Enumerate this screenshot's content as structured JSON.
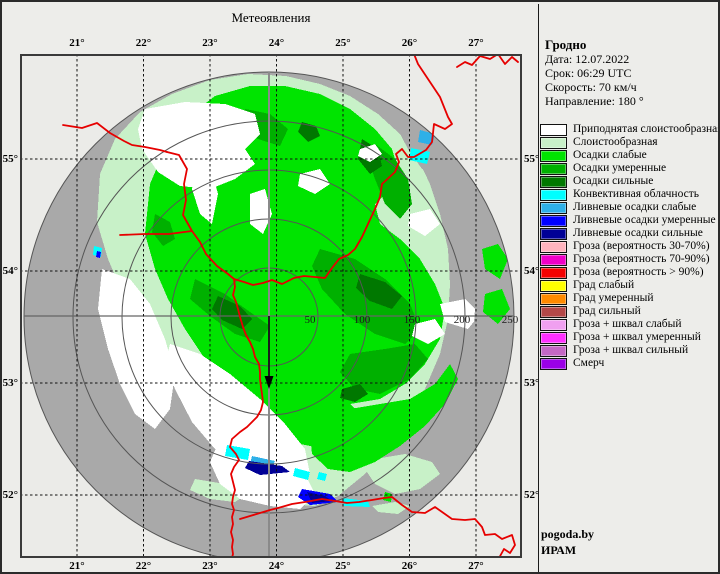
{
  "title": "Метеоявления",
  "station": {
    "name": "Гродно",
    "date_label": "Дата: 12.07.2022",
    "time_label": "Срок: 06:29 UTC",
    "speed_label": "Скорость: 70  км/ч",
    "direction_label": "Направление: 180 °"
  },
  "legend": {
    "items": [
      {
        "label": "Приподнятая слоистообразная",
        "color": "#FFFFFF"
      },
      {
        "label": "Слоистообразная",
        "color": "#C8F1C8"
      },
      {
        "label": "Осадки слабые",
        "color": "#00E400"
      },
      {
        "label": "Осадки умеренные",
        "color": "#00B000"
      },
      {
        "label": "Осадки сильные",
        "color": "#007800"
      },
      {
        "label": "Конвективная облачность",
        "color": "#00FFFF"
      },
      {
        "label": "Ливневые осадки слабые",
        "color": "#2EB0E8"
      },
      {
        "label": "Ливневые осадки умеренные",
        "color": "#0000FF"
      },
      {
        "label": "Ливневые осадки сильные",
        "color": "#000096"
      },
      {
        "label": "Гроза (вероятность 30-70%)",
        "color": "#FFB4BE"
      },
      {
        "label": "Гроза (вероятность 70-90%)",
        "color": "#F000C8"
      },
      {
        "label": "Гроза (вероятность > 90%)",
        "color": "#F40000"
      },
      {
        "label": "Град слабый",
        "color": "#FFFF00"
      },
      {
        "label": "Град умеренный",
        "color": "#FF8A00"
      },
      {
        "label": "Град сильный",
        "color": "#B44848"
      },
      {
        "label": "Гроза + шквал слабый",
        "color": "#F0A0F0"
      },
      {
        "label": "Гроза + шквал умеренный",
        "color": "#FF30FF"
      },
      {
        "label": "Гроза + шквал сильный",
        "color": "#C468C4"
      },
      {
        "label": "Смерч",
        "color": "#9A00E6"
      }
    ]
  },
  "map": {
    "lon_labels": [
      "21°",
      "22°",
      "23°",
      "24°",
      "25°",
      "26°",
      "27°"
    ],
    "lat_labels": [
      "55°",
      "54°",
      "53°",
      "52°"
    ],
    "range_ring_labels": [
      "50",
      "100",
      "150",
      "200",
      "250"
    ],
    "colors": {
      "no_echo_gray": "#A9A9A9",
      "map_background": "#EBEBE8",
      "country_border_red": "#E60000"
    }
  },
  "footer": {
    "site": "pogoda.by",
    "org": "ИРАМ"
  }
}
